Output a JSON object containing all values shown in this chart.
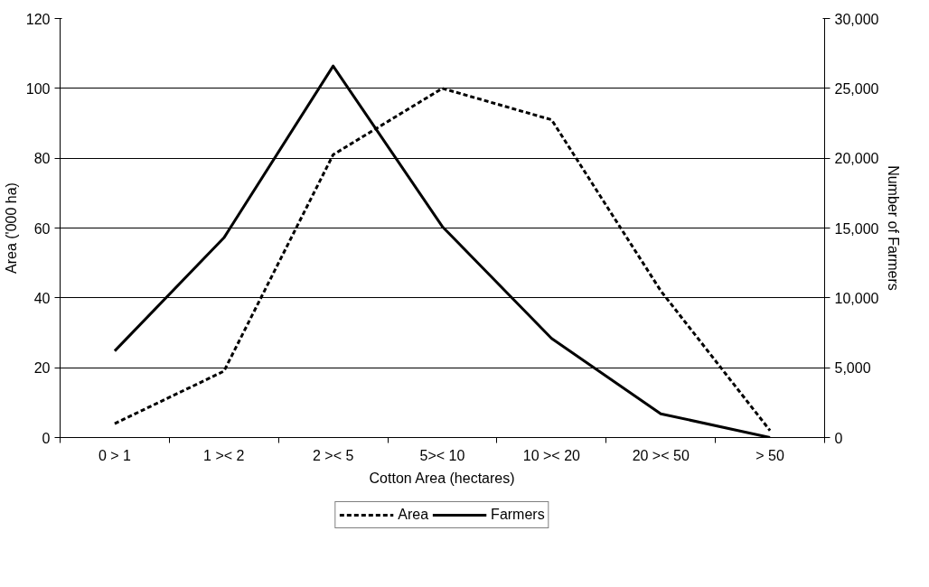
{
  "chart_data": {
    "type": "line",
    "xlabel": "Cotton Area (hectares)",
    "ylabel": "Area ('000 ha)",
    "y2label": "Number of Farmers",
    "categories": [
      "0 > 1",
      "1 >< 2",
      "2 >< 5",
      "5>< 10",
      "10 >< 20",
      "20 >< 50",
      "> 50"
    ],
    "series": [
      {
        "name": "Area",
        "color": "#000000",
        "line_style": "dashed",
        "values": [
          4,
          19,
          81,
          100,
          91,
          42,
          2
        ]
      },
      {
        "name": "Farmers",
        "color": "#000000",
        "line_style": "solid",
        "axis": "y2",
        "values": [
          6200,
          14300,
          26600,
          15100,
          7100,
          1700,
          0
        ]
      }
    ],
    "ylim": [
      0,
      120
    ],
    "yticks": [
      0,
      20,
      40,
      60,
      80,
      100,
      120
    ],
    "y2lim": [
      0,
      30000
    ],
    "y2ticks": [
      {
        "value": 0,
        "label": "0"
      },
      {
        "value": 5000,
        "label": "5,000"
      },
      {
        "value": 10000,
        "label": "10,000"
      },
      {
        "value": 15000,
        "label": "15,000"
      },
      {
        "value": 20000,
        "label": "20,000"
      },
      {
        "value": 25000,
        "label": "25,000"
      },
      {
        "value": 30000,
        "label": "30,000"
      }
    ],
    "grid": "y",
    "legend": "bottom",
    "marker": "none"
  }
}
